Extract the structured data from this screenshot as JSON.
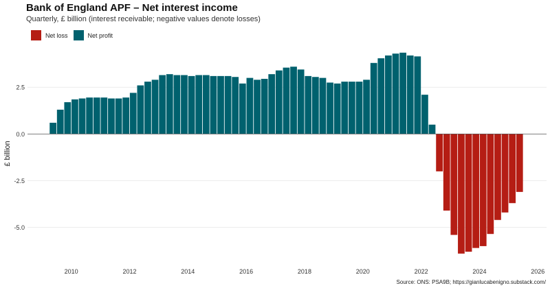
{
  "title": "Bank of England APF – Net interest income",
  "subtitle": "Quarterly, £ billion (interest receivable; negative values denote losses)",
  "source": "Source: ONS: PSA9B; https://gianlucabenigno.substack.com/",
  "legend": [
    {
      "label": "Net loss",
      "color": "#b51d14"
    },
    {
      "label": "Net profit",
      "color": "#00616e"
    }
  ],
  "chart_data": {
    "type": "bar",
    "title": "Bank of England APF – Net interest income",
    "ylabel": "£ billion",
    "xlabel": "",
    "ylim": [
      -6.7,
      4.6
    ],
    "xlim": [
      2008.5,
      2026.3
    ],
    "yticks": [
      -5.0,
      -2.5,
      0.0,
      2.5
    ],
    "ytick_labels": [
      "-5.0",
      "-2.5",
      "0.0",
      "2.5"
    ],
    "xticks": [
      2010,
      2012,
      2014,
      2016,
      2018,
      2020,
      2022,
      2024,
      2026
    ],
    "xtick_labels": [
      "2010",
      "2012",
      "2014",
      "2016",
      "2018",
      "2020",
      "2022",
      "2024",
      "2026"
    ],
    "grid": true,
    "start_year": 2009,
    "start_quarter": 2,
    "periods_per_year": 4,
    "series": [
      {
        "name": "Net interest income",
        "values": [
          0.6,
          1.3,
          1.7,
          1.85,
          1.9,
          1.95,
          1.95,
          1.95,
          1.9,
          1.9,
          1.95,
          2.2,
          2.6,
          2.8,
          2.9,
          3.15,
          3.2,
          3.15,
          3.15,
          3.1,
          3.15,
          3.15,
          3.1,
          3.1,
          3.1,
          3.05,
          2.7,
          3.0,
          2.9,
          2.95,
          3.2,
          3.4,
          3.55,
          3.6,
          3.45,
          3.1,
          3.05,
          3.0,
          2.75,
          2.7,
          2.8,
          2.8,
          2.8,
          2.9,
          3.8,
          4.05,
          4.2,
          4.3,
          4.35,
          4.2,
          4.15,
          2.1,
          0.5,
          -2.0,
          -4.1,
          -5.4,
          -6.4,
          -6.3,
          -6.1,
          -6.0,
          -5.35,
          -4.6,
          -4.2,
          -3.7,
          -3.1
        ]
      }
    ],
    "colors": {
      "negative": "#b51d14",
      "positive": "#00616e"
    }
  }
}
